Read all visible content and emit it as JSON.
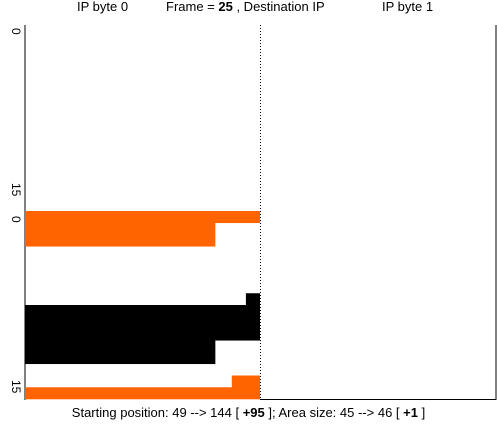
{
  "header": {
    "left": "IP byte 0",
    "center_prefix": "Frame = ",
    "center_frame": "25",
    "center_suffix": " , Destination IP",
    "right": "IP byte 1"
  },
  "footer": {
    "prefix": "Starting position: 49 --> 144 [ ",
    "start_delta": "+95",
    "middle": " ]; Area size: 45 --> 46 [ ",
    "size_delta": "+1",
    "suffix": " ]"
  },
  "colors": {
    "orange": "#ff6400",
    "black": "#000000"
  },
  "chart_data": {
    "type": "bar",
    "orientation": "horizontal",
    "axis": {
      "top_panel_ticks": [
        "0",
        "15"
      ],
      "bottom_panel_ticks": [
        "0",
        "15"
      ]
    },
    "bars": [
      {
        "row": 0,
        "value": 1.0,
        "color": "orange"
      },
      {
        "row": 1,
        "value": 0.81,
        "color": "orange"
      },
      {
        "row": 2,
        "value": 0.81,
        "color": "orange"
      },
      {
        "row": 7,
        "value": 0.06,
        "color": "black"
      },
      {
        "row": 8,
        "value": 1.0,
        "color": "black"
      },
      {
        "row": 9,
        "value": 1.0,
        "color": "black"
      },
      {
        "row": 10,
        "value": 1.0,
        "color": "black"
      },
      {
        "row": 11,
        "value": 0.81,
        "color": "black"
      },
      {
        "row": 12,
        "value": 0.81,
        "color": "black"
      },
      {
        "row": 14,
        "value": 0.12,
        "color": "orange"
      },
      {
        "row": 15,
        "value": 1.0,
        "color": "orange"
      }
    ]
  }
}
